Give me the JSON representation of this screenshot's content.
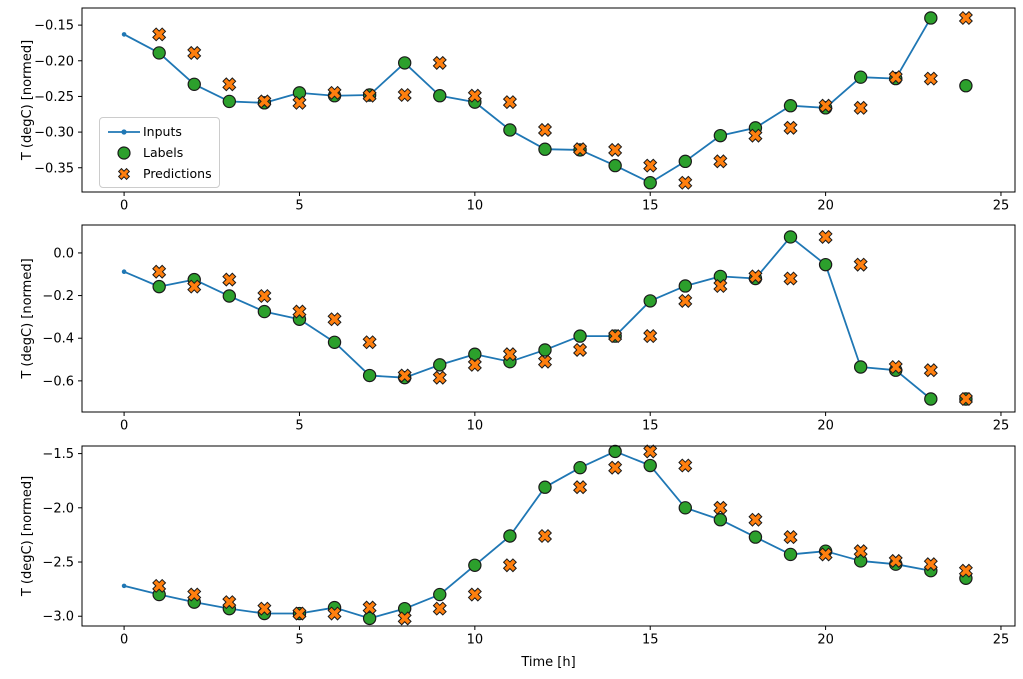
{
  "figure": {
    "background": "#ffffff",
    "legend": {
      "location": "center-left-of-first-subplot",
      "items": [
        {
          "label": "Inputs",
          "marker": "line-with-dot",
          "color": "#1f77b4"
        },
        {
          "label": "Labels",
          "marker": "circle",
          "color": "#2ca02c",
          "edge_color": "#000000"
        },
        {
          "label": "Predictions",
          "marker": "x",
          "color": "#ff7f0e",
          "edge_color": "#000000"
        }
      ]
    }
  },
  "chart_data": [
    {
      "type": "line",
      "title": "",
      "xlabel": "",
      "ylabel": "T (degC) [normed]",
      "grid": false,
      "xlim": [
        -1.2,
        25.4
      ],
      "ylim": [
        -0.384,
        -0.126
      ],
      "xticks": [
        0,
        5,
        10,
        15,
        20,
        25
      ],
      "xtick_labels": [
        "0",
        "5",
        "10",
        "15",
        "20",
        "25"
      ],
      "yticks": [
        -0.15,
        -0.2,
        -0.25,
        -0.3,
        -0.35
      ],
      "ytick_labels": [
        "−0.15",
        "−0.20",
        "−0.25",
        "−0.30",
        "−0.35"
      ],
      "series": [
        {
          "name": "Inputs",
          "kind": "line-with-dots",
          "color": "#1f77b4",
          "x": [
            0,
            1,
            2,
            3,
            4,
            5,
            6,
            7,
            8,
            9,
            10,
            11,
            12,
            13,
            14,
            15,
            16,
            17,
            18,
            19,
            20,
            21,
            22,
            23
          ],
          "y": [
            -0.163,
            -0.189,
            -0.233,
            -0.257,
            -0.259,
            -0.245,
            -0.249,
            -0.248,
            -0.203,
            -0.249,
            -0.258,
            -0.297,
            -0.324,
            -0.325,
            -0.347,
            -0.371,
            -0.341,
            -0.305,
            -0.294,
            -0.263,
            -0.266,
            -0.223,
            -0.225,
            -0.14
          ]
        },
        {
          "name": "Labels",
          "kind": "scatter-circle",
          "color": "#2ca02c",
          "edge_color": "#000000",
          "x": [
            1,
            2,
            3,
            4,
            5,
            6,
            7,
            8,
            9,
            10,
            11,
            12,
            13,
            14,
            15,
            16,
            17,
            18,
            19,
            20,
            21,
            22,
            23,
            24
          ],
          "y": [
            -0.189,
            -0.233,
            -0.257,
            -0.259,
            -0.245,
            -0.249,
            -0.248,
            -0.203,
            -0.249,
            -0.258,
            -0.297,
            -0.324,
            -0.325,
            -0.347,
            -0.371,
            -0.341,
            -0.305,
            -0.294,
            -0.263,
            -0.266,
            -0.223,
            -0.225,
            -0.14,
            -0.235
          ]
        },
        {
          "name": "Predictions",
          "kind": "scatter-x",
          "color": "#ff7f0e",
          "edge_color": "#000000",
          "x": [
            1,
            2,
            3,
            4,
            5,
            6,
            7,
            8,
            9,
            10,
            11,
            12,
            13,
            14,
            15,
            16,
            17,
            18,
            19,
            20,
            21,
            22,
            23,
            24
          ],
          "y": [
            -0.163,
            -0.189,
            -0.233,
            -0.257,
            -0.259,
            -0.245,
            -0.249,
            -0.248,
            -0.203,
            -0.249,
            -0.258,
            -0.297,
            -0.324,
            -0.325,
            -0.347,
            -0.371,
            -0.341,
            -0.305,
            -0.294,
            -0.263,
            -0.266,
            -0.223,
            -0.225,
            -0.14
          ]
        }
      ]
    },
    {
      "type": "line",
      "title": "",
      "xlabel": "",
      "ylabel": "T (degC) [normed]",
      "grid": false,
      "xlim": [
        -1.2,
        25.4
      ],
      "ylim": [
        -0.746,
        0.131
      ],
      "xticks": [
        0,
        5,
        10,
        15,
        20,
        25
      ],
      "xtick_labels": [
        "0",
        "5",
        "10",
        "15",
        "20",
        "25"
      ],
      "yticks": [
        0.0,
        -0.2,
        -0.4,
        -0.6
      ],
      "ytick_labels": [
        "0.0",
        "−0.2",
        "−0.4",
        "−0.6"
      ],
      "series": [
        {
          "name": "Inputs",
          "kind": "line-with-dots",
          "color": "#1f77b4",
          "x": [
            0,
            1,
            2,
            3,
            4,
            5,
            6,
            7,
            8,
            9,
            10,
            11,
            12,
            13,
            14,
            15,
            16,
            17,
            18,
            19,
            20,
            21,
            22,
            23
          ],
          "y": [
            -0.088,
            -0.158,
            -0.125,
            -0.202,
            -0.275,
            -0.311,
            -0.419,
            -0.575,
            -0.585,
            -0.525,
            -0.475,
            -0.51,
            -0.455,
            -0.39,
            -0.39,
            -0.225,
            -0.155,
            -0.11,
            -0.12,
            0.075,
            -0.055,
            -0.535,
            -0.55,
            -0.685
          ]
        },
        {
          "name": "Labels",
          "kind": "scatter-circle",
          "color": "#2ca02c",
          "edge_color": "#000000",
          "x": [
            1,
            2,
            3,
            4,
            5,
            6,
            7,
            8,
            9,
            10,
            11,
            12,
            13,
            14,
            15,
            16,
            17,
            18,
            19,
            20,
            21,
            22,
            23,
            24
          ],
          "y": [
            -0.158,
            -0.125,
            -0.202,
            -0.275,
            -0.311,
            -0.419,
            -0.575,
            -0.585,
            -0.525,
            -0.475,
            -0.51,
            -0.455,
            -0.39,
            -0.39,
            -0.225,
            -0.155,
            -0.11,
            -0.12,
            0.075,
            -0.055,
            -0.535,
            -0.55,
            -0.685,
            -0.685
          ]
        },
        {
          "name": "Predictions",
          "kind": "scatter-x",
          "color": "#ff7f0e",
          "edge_color": "#000000",
          "x": [
            1,
            2,
            3,
            4,
            5,
            6,
            7,
            8,
            9,
            10,
            11,
            12,
            13,
            14,
            15,
            16,
            17,
            18,
            19,
            20,
            21,
            22,
            23,
            24
          ],
          "y": [
            -0.088,
            -0.158,
            -0.125,
            -0.202,
            -0.275,
            -0.311,
            -0.419,
            -0.575,
            -0.585,
            -0.525,
            -0.475,
            -0.51,
            -0.455,
            -0.39,
            -0.39,
            -0.225,
            -0.155,
            -0.11,
            -0.12,
            0.075,
            -0.055,
            -0.535,
            -0.55,
            -0.685
          ]
        }
      ]
    },
    {
      "type": "line",
      "title": "",
      "xlabel": "Time [h]",
      "ylabel": "T (degC) [normed]",
      "grid": false,
      "xlim": [
        -1.2,
        25.4
      ],
      "ylim": [
        -3.09,
        -1.43
      ],
      "xticks": [
        0,
        5,
        10,
        15,
        20,
        25
      ],
      "xtick_labels": [
        "0",
        "5",
        "10",
        "15",
        "20",
        "25"
      ],
      "yticks": [
        -1.5,
        -2.0,
        -2.5,
        -3.0
      ],
      "ytick_labels": [
        "−1.5",
        "−2.0",
        "−2.5",
        "−3.0"
      ],
      "series": [
        {
          "name": "Inputs",
          "kind": "line-with-dots",
          "color": "#1f77b4",
          "x": [
            0,
            1,
            2,
            3,
            4,
            5,
            6,
            7,
            8,
            9,
            10,
            11,
            12,
            13,
            14,
            15,
            16,
            17,
            18,
            19,
            20,
            21,
            22,
            23
          ],
          "y": [
            -2.72,
            -2.8,
            -2.87,
            -2.93,
            -2.975,
            -2.975,
            -2.92,
            -3.02,
            -2.93,
            -2.8,
            -2.53,
            -2.26,
            -1.81,
            -1.63,
            -1.48,
            -1.61,
            -2.0,
            -2.11,
            -2.27,
            -2.43,
            -2.4,
            -2.49,
            -2.52,
            -2.58
          ]
        },
        {
          "name": "Labels",
          "kind": "scatter-circle",
          "color": "#2ca02c",
          "edge_color": "#000000",
          "x": [
            1,
            2,
            3,
            4,
            5,
            6,
            7,
            8,
            9,
            10,
            11,
            12,
            13,
            14,
            15,
            16,
            17,
            18,
            19,
            20,
            21,
            22,
            23,
            24
          ],
          "y": [
            -2.8,
            -2.87,
            -2.93,
            -2.975,
            -2.975,
            -2.92,
            -3.02,
            -2.93,
            -2.8,
            -2.53,
            -2.26,
            -1.81,
            -1.63,
            -1.48,
            -1.61,
            -2.0,
            -2.11,
            -2.27,
            -2.43,
            -2.4,
            -2.49,
            -2.52,
            -2.58,
            -2.65
          ]
        },
        {
          "name": "Predictions",
          "kind": "scatter-x",
          "color": "#ff7f0e",
          "edge_color": "#000000",
          "x": [
            1,
            2,
            3,
            4,
            5,
            6,
            7,
            8,
            9,
            10,
            11,
            12,
            13,
            14,
            15,
            16,
            17,
            18,
            19,
            20,
            21,
            22,
            23,
            24
          ],
          "y": [
            -2.72,
            -2.8,
            -2.87,
            -2.93,
            -2.975,
            -2.975,
            -2.92,
            -3.02,
            -2.93,
            -2.8,
            -2.53,
            -2.26,
            -1.81,
            -1.63,
            -1.48,
            -1.61,
            -2.0,
            -2.11,
            -2.27,
            -2.43,
            -2.4,
            -2.49,
            -2.52,
            -2.58
          ]
        }
      ]
    }
  ]
}
